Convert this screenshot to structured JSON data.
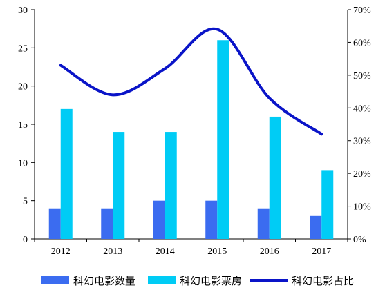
{
  "colors": {
    "count_bar": "#3b6cf0",
    "boxoffice_bar": "#00ccf5",
    "share_line": "#0a14c8",
    "axis": "#000000"
  },
  "chart_data": {
    "type": "bar",
    "categories": [
      "2012",
      "2013",
      "2014",
      "2015",
      "2016",
      "2017"
    ],
    "ylim": [
      0,
      30
    ],
    "y2lim": [
      0,
      70
    ],
    "y_ticks": [
      "0",
      "5",
      "10",
      "15",
      "20",
      "25",
      "30"
    ],
    "y2_ticks": [
      "0%",
      "10%",
      "20%",
      "30%",
      "40%",
      "50%",
      "60%",
      "70%"
    ],
    "series": [
      {
        "name": "科幻电影数量",
        "type": "bar",
        "axis": "left",
        "values": [
          4,
          4,
          5,
          5,
          4,
          3
        ]
      },
      {
        "name": "科幻电影票房",
        "type": "bar",
        "axis": "left",
        "values": [
          17,
          14,
          14,
          26,
          16,
          9
        ]
      },
      {
        "name": "科幻电影占比",
        "type": "line",
        "axis": "right",
        "unit": "%",
        "values": [
          53,
          44,
          52,
          64,
          43,
          32
        ]
      }
    ],
    "legend_position": "bottom",
    "grid": false
  }
}
